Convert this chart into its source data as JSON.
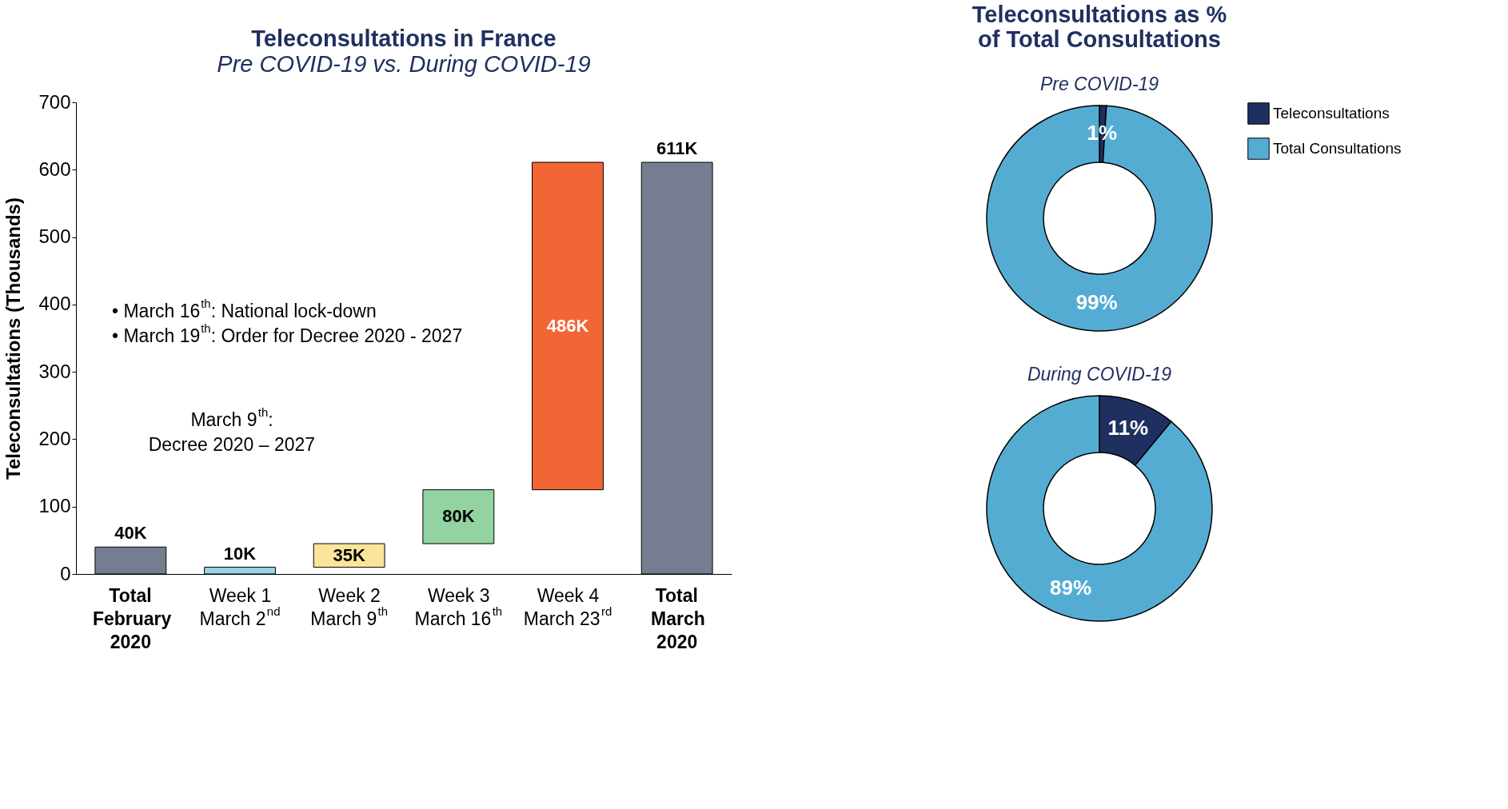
{
  "chart_data": [
    {
      "type": "bar",
      "title": "Teleconsultations in France",
      "subtitle": "Pre COVID-19 vs. During COVID-19",
      "ylabel": "Teleconsultations (Thousands)",
      "categories": [
        "Total\nFebruary\n2020",
        "Week 1\nMarch 2$^{nd}$",
        "Week 2\nMarch 9$^{th}$",
        "Week 3\nMarch 16$^{th}$",
        "Week 4\nMarch 23$^{rd}$",
        "Total\nMarch\n2020"
      ],
      "values": [
        40,
        10,
        35,
        80,
        486,
        611
      ],
      "base": [
        0,
        0,
        10,
        45,
        125,
        0
      ],
      "colors": [
        "#767d90",
        "#9dd3e8",
        "#fbe59a",
        "#93d3a2",
        "#f26535",
        "#767d90"
      ],
      "value_labels": [
        "40K",
        "10K",
        "35K",
        "80K",
        "486K",
        "611K"
      ],
      "ylim": [
        0,
        700
      ],
      "yticks": [
        0,
        100,
        200,
        300,
        400,
        500,
        600,
        700
      ],
      "annotations": [
        "• March 16$^{th}$: National lock-down\n• March 19$^{th}$: Order for Decree 2020 - 2027",
        "March 9$^{th}$:\nDecree 2020 – 2027"
      ]
    },
    {
      "type": "donut",
      "title": "Teleconsultations as %\nof Total Consultations",
      "subtitle": "Pre COVID-19",
      "categories": [
        "Teleconsultations",
        "Total Consultations"
      ],
      "values": [
        1,
        99
      ],
      "colors": [
        "#1f3060",
        "#55acd3"
      ],
      "value_labels": [
        "1%",
        "99%"
      ],
      "legend": "right"
    },
    {
      "type": "donut",
      "title": "During COVID-19",
      "values": [
        11,
        89
      ],
      "colors": [
        "#1f3060",
        "#55acd3"
      ],
      "value_labels": [
        "11%",
        "89%"
      ]
    }
  ]
}
